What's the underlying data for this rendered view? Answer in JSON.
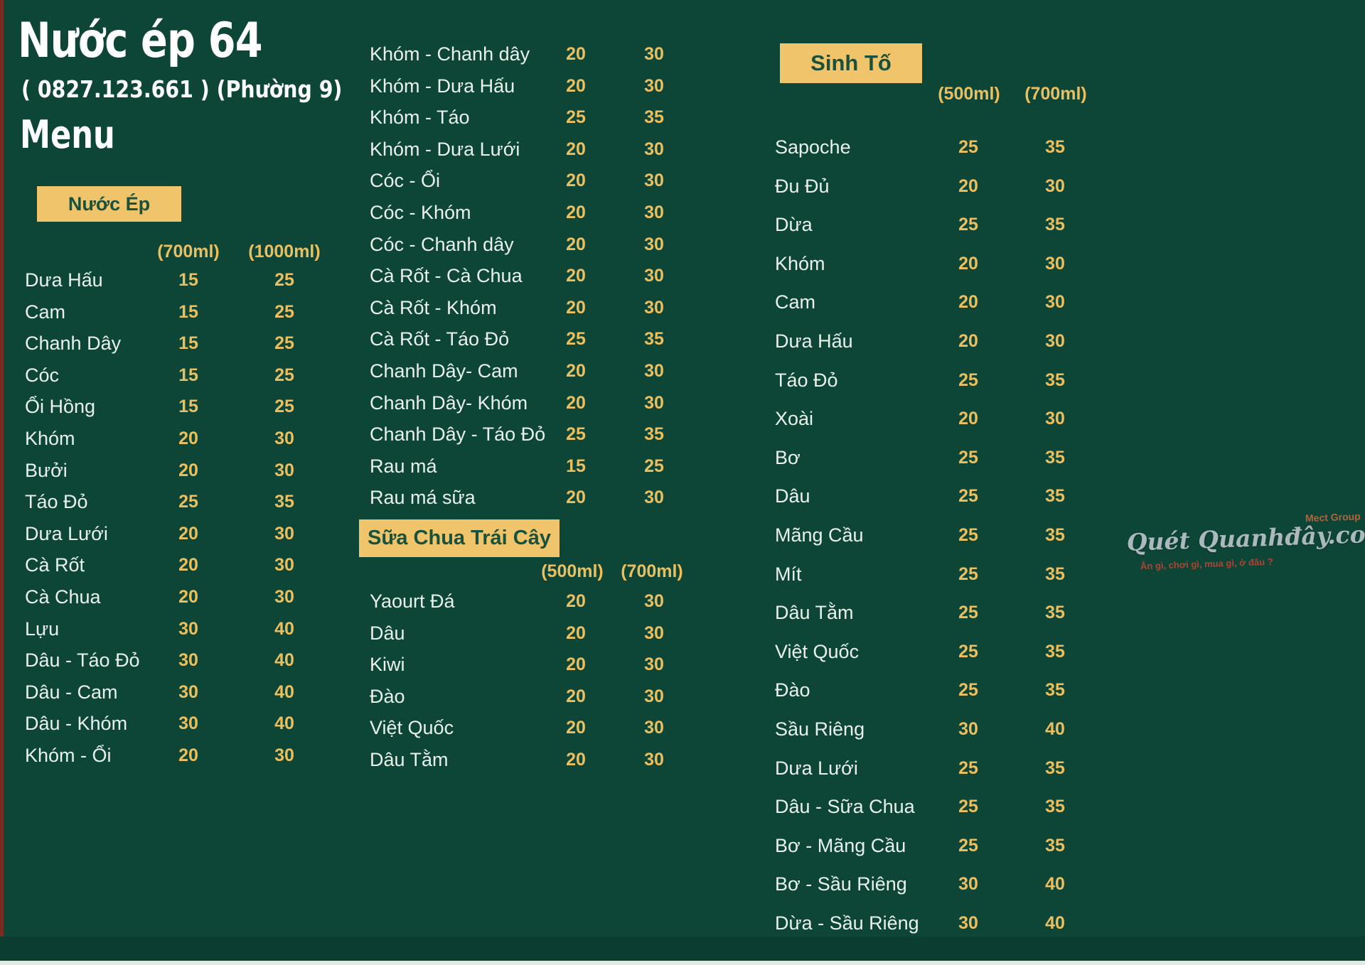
{
  "page": {
    "title": "Nước ép 64",
    "phone_line": "( 0827.123.661 ) (Phường 9)",
    "menu_label": "Menu"
  },
  "colors": {
    "background": "#0d4536",
    "accent_yellow": "#f0c46a",
    "price_gold": "#ecbf5e",
    "item_text": "#e8f1ec",
    "badge_text": "#19513d",
    "left_edge_red": "#7a2b23"
  },
  "sections": {
    "juice": {
      "badge": "Nước Ép",
      "size_headers": [
        "(700ml)",
        "(1000ml)"
      ],
      "items_col1": [
        {
          "name": "Dưa Hấu",
          "p1": "15",
          "p2": "25"
        },
        {
          "name": "Cam",
          "p1": "15",
          "p2": "25"
        },
        {
          "name": "Chanh Dây",
          "p1": "15",
          "p2": "25"
        },
        {
          "name": "Cóc",
          "p1": "15",
          "p2": "25"
        },
        {
          "name": "Ổi Hồng",
          "p1": "15",
          "p2": "25"
        },
        {
          "name": "Khóm",
          "p1": "20",
          "p2": "30"
        },
        {
          "name": "Bưởi",
          "p1": "20",
          "p2": "30"
        },
        {
          "name": "Táo Đỏ",
          "p1": "25",
          "p2": "35"
        },
        {
          "name": "Dưa Lưới",
          "p1": "20",
          "p2": "30"
        },
        {
          "name": "Cà Rốt",
          "p1": "20",
          "p2": "30"
        },
        {
          "name": "Cà Chua",
          "p1": "20",
          "p2": "30"
        },
        {
          "name": "Lựu",
          "p1": "30",
          "p2": "40"
        },
        {
          "name": "Dâu - Táo Đỏ",
          "p1": "30",
          "p2": "40"
        },
        {
          "name": "Dâu - Cam",
          "p1": "30",
          "p2": "40"
        },
        {
          "name": "Dâu - Khóm",
          "p1": "30",
          "p2": "40"
        },
        {
          "name": "Khóm - Ổi",
          "p1": "20",
          "p2": "30"
        }
      ],
      "items_col2": [
        {
          "name": "Khóm - Chanh dây",
          "p1": "20",
          "p2": "30"
        },
        {
          "name": "Khóm - Dưa Hấu",
          "p1": "20",
          "p2": "30"
        },
        {
          "name": "Khóm - Táo",
          "p1": "25",
          "p2": "35"
        },
        {
          "name": "Khóm - Dưa Lưới",
          "p1": "20",
          "p2": "30"
        },
        {
          "name": "Cóc - Ổi",
          "p1": "20",
          "p2": "30"
        },
        {
          "name": "Cóc - Khóm",
          "p1": "20",
          "p2": "30"
        },
        {
          "name": "Cóc - Chanh dây",
          "p1": "20",
          "p2": "30"
        },
        {
          "name": "Cà Rốt - Cà Chua",
          "p1": "20",
          "p2": "30"
        },
        {
          "name": "Cà Rốt - Khóm",
          "p1": "20",
          "p2": "30"
        },
        {
          "name": "Cà Rốt - Táo Đỏ",
          "p1": "25",
          "p2": "35"
        },
        {
          "name": "Chanh Dây- Cam",
          "p1": "20",
          "p2": "30"
        },
        {
          "name": "Chanh Dây- Khóm",
          "p1": "20",
          "p2": "30"
        },
        {
          "name": "Chanh Dây - Táo Đỏ",
          "p1": "25",
          "p2": "35"
        },
        {
          "name": "Rau má",
          "p1": "15",
          "p2": "25"
        },
        {
          "name": "Rau má sữa",
          "p1": "20",
          "p2": "30"
        }
      ]
    },
    "yogurt": {
      "badge": "Sữa Chua Trái Cây",
      "size_headers": [
        "(500ml)",
        "(700ml)"
      ],
      "items": [
        {
          "name": "Yaourt Đá",
          "p1": "20",
          "p2": "30"
        },
        {
          "name": "Dâu",
          "p1": "20",
          "p2": "30"
        },
        {
          "name": "Kiwi",
          "p1": "20",
          "p2": "30"
        },
        {
          "name": "Đào",
          "p1": "20",
          "p2": "30"
        },
        {
          "name": "Việt Quốc",
          "p1": "20",
          "p2": "30"
        },
        {
          "name": "Dâu Tằm",
          "p1": "20",
          "p2": "30"
        }
      ]
    },
    "smoothie": {
      "badge": "Sinh Tố",
      "size_headers": [
        "(500ml)",
        "(700ml)"
      ],
      "items": [
        {
          "name": "Sapoche",
          "p1": "25",
          "p2": "35"
        },
        {
          "name": "Đu Đủ",
          "p1": "20",
          "p2": "30"
        },
        {
          "name": "Dừa",
          "p1": "25",
          "p2": "35"
        },
        {
          "name": "Khóm",
          "p1": "20",
          "p2": "30"
        },
        {
          "name": "Cam",
          "p1": "20",
          "p2": "30"
        },
        {
          "name": "Dưa Hấu",
          "p1": "20",
          "p2": "30"
        },
        {
          "name": "Táo Đỏ",
          "p1": "25",
          "p2": "35"
        },
        {
          "name": "Xoài",
          "p1": "20",
          "p2": "30"
        },
        {
          "name": "Bơ",
          "p1": "25",
          "p2": "35"
        },
        {
          "name": "Dâu",
          "p1": "25",
          "p2": "35"
        },
        {
          "name": "Mãng Cầu",
          "p1": "25",
          "p2": "35"
        },
        {
          "name": "Mít",
          "p1": "25",
          "p2": "35"
        },
        {
          "name": "Dâu Tằm",
          "p1": "25",
          "p2": "35"
        },
        {
          "name": "Việt Quốc",
          "p1": "25",
          "p2": "35"
        },
        {
          "name": "Đào",
          "p1": "25",
          "p2": "35"
        },
        {
          "name": "Sầu Riêng",
          "p1": "30",
          "p2": "40"
        },
        {
          "name": "Dưa Lưới",
          "p1": "25",
          "p2": "35"
        },
        {
          "name": "Dâu - Sữa Chua",
          "p1": "25",
          "p2": "35"
        },
        {
          "name": "Bơ - Mãng Cầu",
          "p1": "25",
          "p2": "35"
        },
        {
          "name": "Bơ - Sầu Riêng",
          "p1": "30",
          "p2": "40"
        },
        {
          "name": "Dừa - Sầu Riêng",
          "p1": "30",
          "p2": "40"
        }
      ]
    }
  },
  "watermark": {
    "small": "Mect Group",
    "brand": "Quét Quanhđây.com",
    "tagline": "Ăn gì, chơi gì, mua gì, ở đâu ?"
  }
}
